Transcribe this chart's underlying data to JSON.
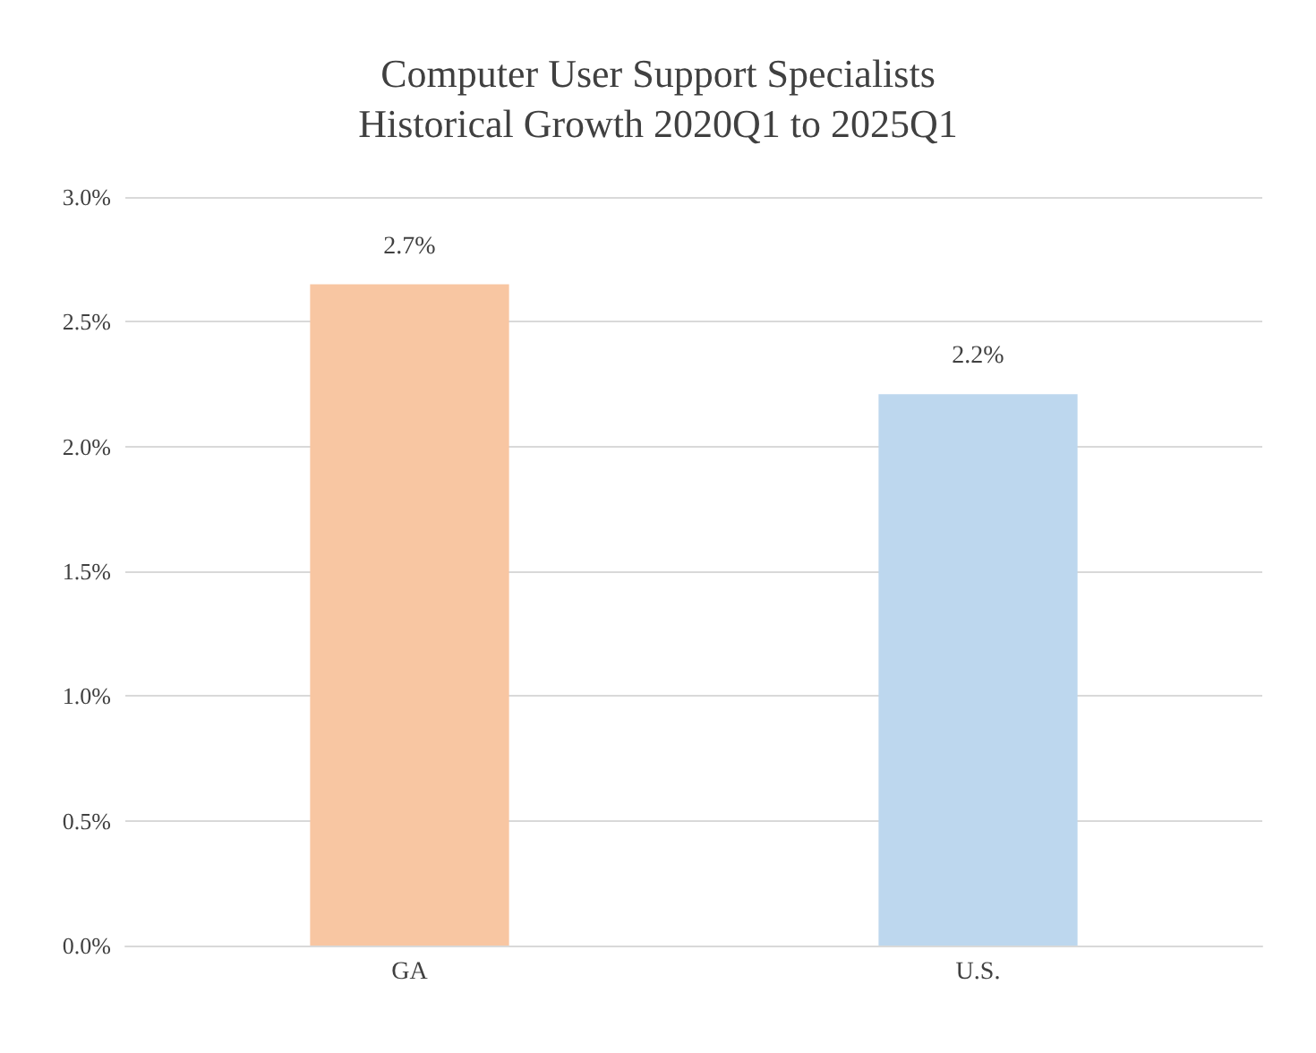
{
  "chart_data": {
    "type": "bar",
    "title": "Computer User Support Specialists\nHistorical Growth 2020Q1 to 2025Q1",
    "categories": [
      "GA",
      "U.S."
    ],
    "values": [
      2.65,
      2.21
    ],
    "colors": [
      "#f8c6a2",
      "#bdd7ee"
    ],
    "value_labels": [
      "2.7%",
      "2.2%"
    ],
    "ylim": [
      0,
      3
    ],
    "yticks": [
      {
        "value": 0,
        "label": "0.0%"
      },
      {
        "value": 0.5,
        "label": "0.5%"
      },
      {
        "value": 1,
        "label": "1.0%"
      },
      {
        "value": 1.5,
        "label": "1.5%"
      },
      {
        "value": 2,
        "label": "2.0%"
      },
      {
        "value": 2.5,
        "label": "2.5%"
      },
      {
        "value": 3,
        "label": "3.0%"
      }
    ],
    "grid": "y"
  }
}
